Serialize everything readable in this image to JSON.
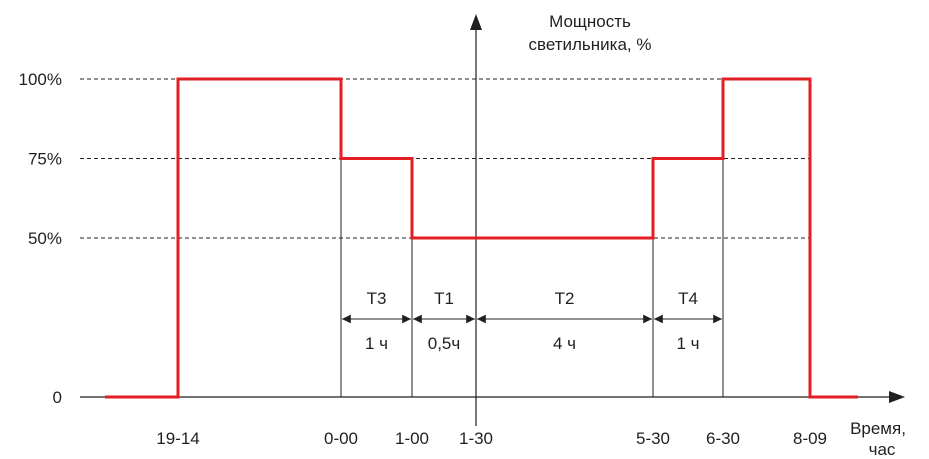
{
  "chart_data": {
    "type": "line",
    "ylabel_lines": [
      "Мощность",
      "светильника, %"
    ],
    "xlabel_lines": [
      "Время,",
      "час"
    ],
    "y_ticks": [
      {
        "value": 0,
        "label": "0"
      },
      {
        "value": 50,
        "label": "50%"
      },
      {
        "value": 75,
        "label": "75%"
      },
      {
        "value": 100,
        "label": "100%"
      }
    ],
    "x_ticks": [
      "19-14",
      "0-00",
      "1-00",
      "1-30",
      "5-30",
      "6-30",
      "8-09"
    ],
    "series": [
      {
        "color": "#e31e24",
        "points": [
          {
            "x": "start",
            "y": 0
          },
          {
            "x": "19-14",
            "y": 0
          },
          {
            "x": "19-14",
            "y": 100
          },
          {
            "x": "0-00",
            "y": 100
          },
          {
            "x": "0-00",
            "y": 75
          },
          {
            "x": "1-00",
            "y": 75
          },
          {
            "x": "1-00",
            "y": 50
          },
          {
            "x": "5-30",
            "y": 50
          },
          {
            "x": "5-30",
            "y": 75
          },
          {
            "x": "6-30",
            "y": 75
          },
          {
            "x": "6-30",
            "y": 100
          },
          {
            "x": "8-09",
            "y": 100
          },
          {
            "x": "8-09",
            "y": 0
          },
          {
            "x": "end",
            "y": 0
          }
        ]
      }
    ],
    "intervals": [
      {
        "name": "T3",
        "duration": "1 ч",
        "from": "0-00",
        "to": "1-00"
      },
      {
        "name": "T1",
        "duration": "0,5ч",
        "from": "1-00",
        "to": "1-30"
      },
      {
        "name": "T2",
        "duration": "4 ч",
        "from": "1-30",
        "to": "5-30"
      },
      {
        "name": "T4",
        "duration": "1 ч",
        "from": "5-30",
        "to": "6-30"
      }
    ],
    "grid": "dashed at 50%, 75%, 100%",
    "line_color": "#e31e24",
    "axis_color": "#231f20"
  }
}
